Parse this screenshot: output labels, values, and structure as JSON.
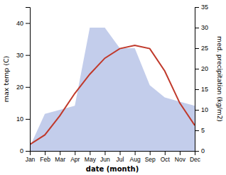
{
  "chart_data": {
    "type": "line",
    "categories": [
      "Jan",
      "Feb",
      "Mar",
      "Apr",
      "May",
      "Jun",
      "Jul",
      "Aug",
      "Sep",
      "Oct",
      "Nov",
      "Dec"
    ],
    "xlabel": "date (month)",
    "ylabel": "max temp (C)",
    "y2label": "med. precipitation (kg/m2)",
    "series": [
      {
        "type": "area",
        "axis": "y2",
        "color": "#b8c4e8",
        "values": [
          1,
          9,
          10,
          11,
          30,
          30,
          25,
          25,
          16,
          13,
          12,
          11
        ]
      },
      {
        "type": "line",
        "color": "#c0392b",
        "values": [
          2,
          5,
          11,
          18,
          24,
          29,
          32,
          33,
          32,
          25,
          15,
          8
        ]
      }
    ],
    "ylim": [
      0,
      45
    ],
    "yticks": [
      0,
      10,
      20,
      30,
      40
    ],
    "y2lim": [
      0,
      35
    ],
    "y2ticks": [
      0,
      5,
      10,
      15,
      20,
      25,
      30,
      35
    ],
    "grid": false
  }
}
